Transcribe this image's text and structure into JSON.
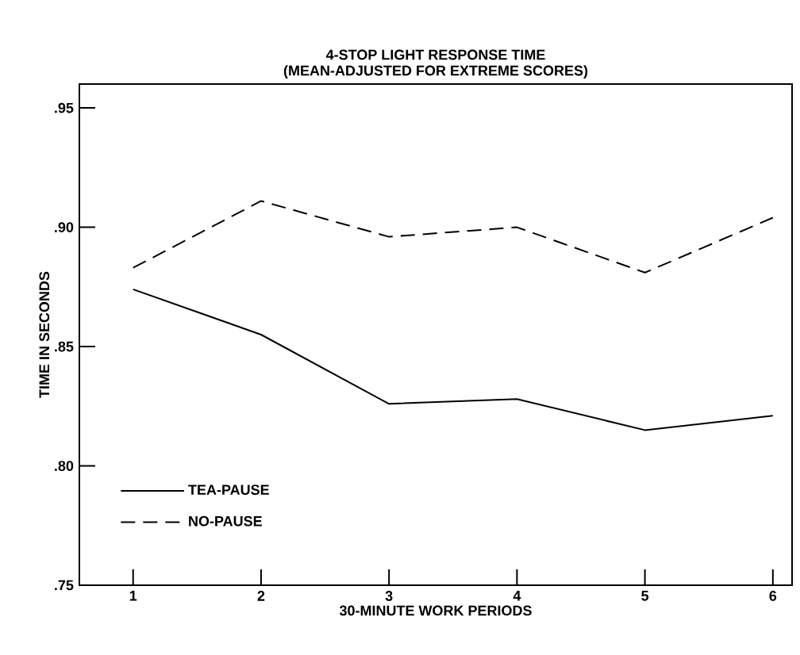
{
  "chart_data": {
    "type": "line",
    "title": "4-STOP LIGHT RESPONSE TIME",
    "subtitle": "(MEAN-ADJUSTED FOR EXTREME SCORES)",
    "xlabel": "30-MINUTE WORK PERIODS",
    "ylabel": "TIME IN SECONDS",
    "x": [
      1,
      2,
      3,
      4,
      5,
      6
    ],
    "series": [
      {
        "name": "TEA-PAUSE",
        "color": "#000000",
        "line_style": "solid",
        "values": [
          0.874,
          0.855,
          0.826,
          0.828,
          0.815,
          0.821
        ]
      },
      {
        "name": "NO-PAUSE",
        "color": "#000000",
        "line_style": "dashed",
        "values": [
          0.883,
          0.911,
          0.896,
          0.9,
          0.881,
          0.904
        ]
      }
    ],
    "xlim": [
      0.58,
      6.15
    ],
    "ylim": [
      0.75,
      0.96
    ],
    "xticks": [
      1,
      2,
      3,
      4,
      5,
      6
    ],
    "yticks": [
      {
        "value": 0.75,
        "label": ".75"
      },
      {
        "value": 0.8,
        "label": ".80"
      },
      {
        "value": 0.85,
        "label": ".85"
      },
      {
        "value": 0.9,
        "label": ".90"
      },
      {
        "value": 0.95,
        "label": ".95"
      }
    ],
    "legend": "bottom left",
    "grid": false,
    "marker": "none"
  }
}
